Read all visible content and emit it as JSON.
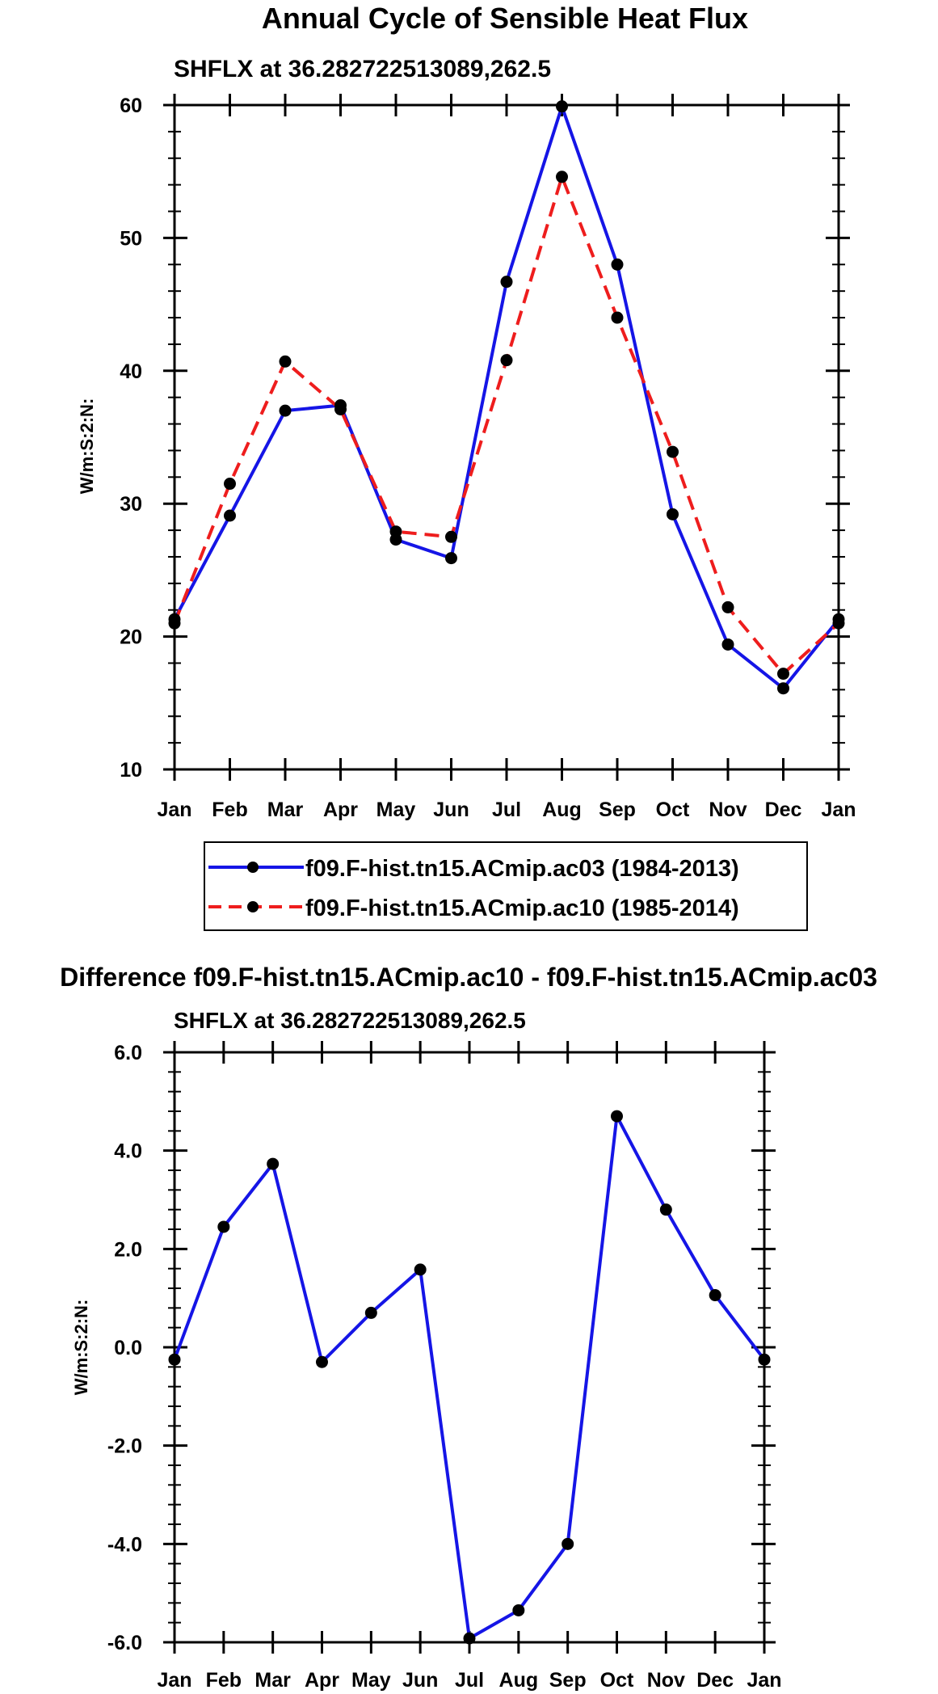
{
  "page_title": "Annual Cycle of Sensible Heat Flux",
  "difference_title": "Difference f09.F-hist.tn15.ACmip.ac10 - f09.F-hist.tn15.ACmip.ac03",
  "colors": {
    "series1": "#1515e6",
    "series2": "#ee1d1d",
    "marker": "#000000",
    "axis": "#000000"
  },
  "chart_data": [
    {
      "type": "line",
      "title": "SHFLX at 36.282722513089,262.5",
      "ylabel": "W/m:S:2:N:",
      "xlabel": "",
      "categories": [
        "Jan",
        "Feb",
        "Mar",
        "Apr",
        "May",
        "Jun",
        "Jul",
        "Aug",
        "Sep",
        "Oct",
        "Nov",
        "Dec",
        "Jan"
      ],
      "ylim": [
        10,
        60
      ],
      "yticks": [
        "10",
        "20",
        "30",
        "40",
        "50",
        "60"
      ],
      "ytick_values": [
        10,
        20,
        30,
        40,
        50,
        60
      ],
      "y_minor_step": 2,
      "legend_position": "bottom",
      "series": [
        {
          "name": "f09.F-hist.tn15.ACmip.ac03 (1984-2013)",
          "style": "solid",
          "color": "#1515e6",
          "values": [
            21.3,
            29.1,
            37.0,
            37.4,
            27.3,
            25.9,
            46.7,
            59.9,
            48.0,
            29.2,
            19.4,
            16.1,
            21.3
          ]
        },
        {
          "name": "f09.F-hist.tn15.ACmip.ac10 (1985-2014)",
          "style": "dashed",
          "color": "#ee1d1d",
          "values": [
            21.0,
            31.5,
            40.7,
            37.1,
            27.9,
            27.5,
            40.8,
            54.6,
            44.0,
            33.9,
            22.2,
            17.2,
            21.0
          ]
        }
      ]
    },
    {
      "type": "line",
      "title": "SHFLX at 36.282722513089,262.5",
      "ylabel": "W/m:S:2:N:",
      "xlabel": "",
      "categories": [
        "Jan",
        "Feb",
        "Mar",
        "Apr",
        "May",
        "Jun",
        "Jul",
        "Aug",
        "Sep",
        "Oct",
        "Nov",
        "Dec",
        "Jan"
      ],
      "ylim": [
        -6,
        6
      ],
      "yticks": [
        "-6.0",
        "-4.0",
        "-2.0",
        "0.0",
        "2.0",
        "4.0",
        "6.0"
      ],
      "ytick_values": [
        -6,
        -4,
        -2,
        0,
        2,
        4,
        6
      ],
      "y_minor_step": 0.4,
      "series": [
        {
          "name": "Difference",
          "style": "solid",
          "color": "#1515e6",
          "values": [
            -0.25,
            2.45,
            3.73,
            -0.3,
            0.7,
            1.58,
            -5.92,
            -5.35,
            -4.0,
            4.7,
            2.8,
            1.06,
            -0.25
          ]
        }
      ]
    }
  ]
}
